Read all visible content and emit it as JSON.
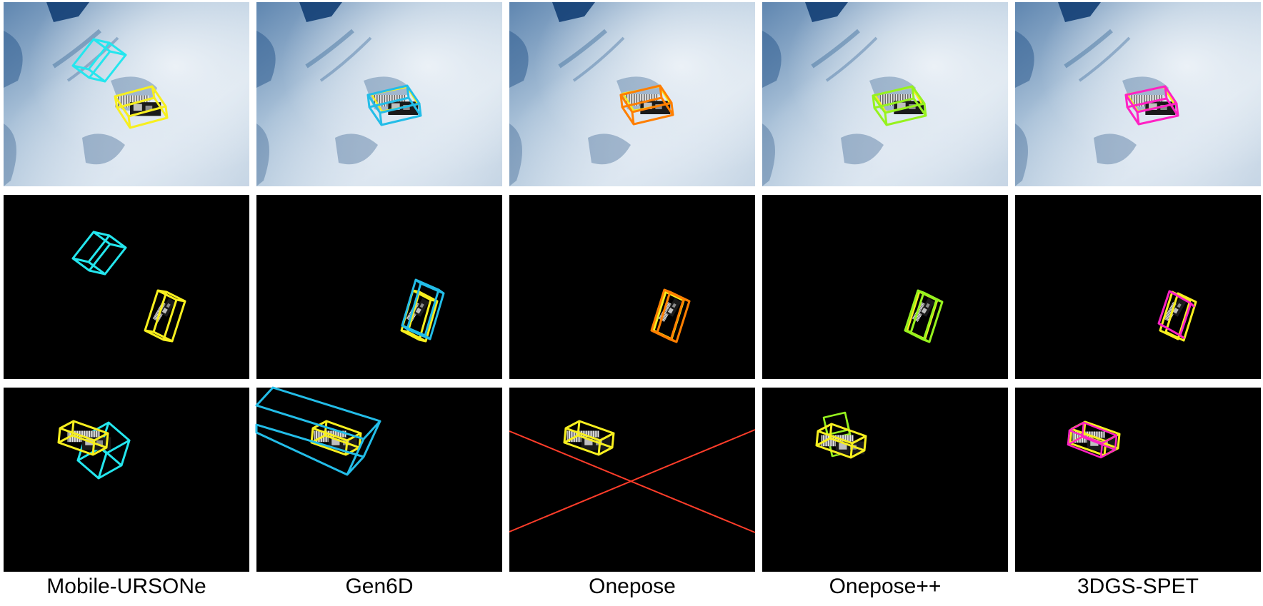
{
  "figure": {
    "methods": [
      {
        "name": "Mobile-URSONe",
        "pred_color": "#24e6ee"
      },
      {
        "name": "Gen6D",
        "pred_color": "#23bde8"
      },
      {
        "name": "Onepose",
        "pred_color": "#ff7f00"
      },
      {
        "name": "Onepose++",
        "pred_color": "#96f21e"
      },
      {
        "name": "3DGS-SPET",
        "pred_color": "#ff22c4"
      }
    ],
    "colors": {
      "ground_truth": "#f7ef1f",
      "panel_background": "#000000",
      "earth_light": "#d6e2ed",
      "earth_dark": "#123e74",
      "onepose_degenerate_lines": "#ff3d2a"
    },
    "rows": [
      {
        "content": "pose boxes overlaid on Earth background image"
      },
      {
        "content": "pose boxes on black background"
      },
      {
        "content": "pose boxes on black background"
      }
    ]
  }
}
